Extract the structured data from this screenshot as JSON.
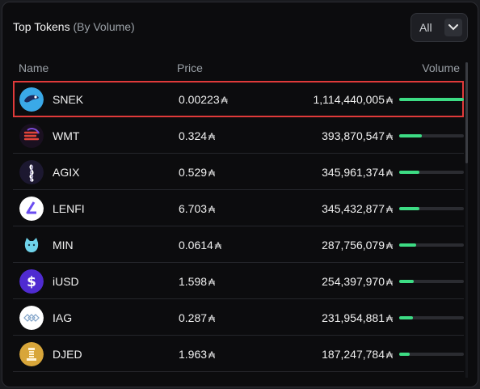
{
  "header": {
    "title": "Top Tokens",
    "subtitle": "(By Volume)"
  },
  "filter": {
    "label": "All"
  },
  "columns": {
    "name": "Name",
    "price": "Price",
    "volume": "Volume"
  },
  "currency_symbol": "₳",
  "accent": "#3ddc84",
  "selection_color": "#e03a3a",
  "tokens": [
    {
      "name": "SNEK",
      "price": "0.00223",
      "volume": "1,114,440,005",
      "share": 1.0,
      "icon": "snek-logo-icon",
      "selected": true
    },
    {
      "name": "WMT",
      "price": "0.324",
      "volume": "393,870,547",
      "share": 0.353,
      "icon": "wmt-logo-icon"
    },
    {
      "name": "AGIX",
      "price": "0.529",
      "volume": "345,961,374",
      "share": 0.31,
      "icon": "agix-logo-icon"
    },
    {
      "name": "LENFI",
      "price": "6.703",
      "volume": "345,432,877",
      "share": 0.31,
      "icon": "lenfi-logo-icon"
    },
    {
      "name": "MIN",
      "price": "0.0614",
      "volume": "287,756,079",
      "share": 0.258,
      "icon": "min-logo-icon"
    },
    {
      "name": "iUSD",
      "price": "1.598",
      "volume": "254,397,970",
      "share": 0.228,
      "icon": "iusd-logo-icon"
    },
    {
      "name": "IAG",
      "price": "0.287",
      "volume": "231,954,881",
      "share": 0.208,
      "icon": "iag-logo-icon"
    },
    {
      "name": "DJED",
      "price": "1.963",
      "volume": "187,247,784",
      "share": 0.168,
      "icon": "djed-logo-icon"
    }
  ]
}
